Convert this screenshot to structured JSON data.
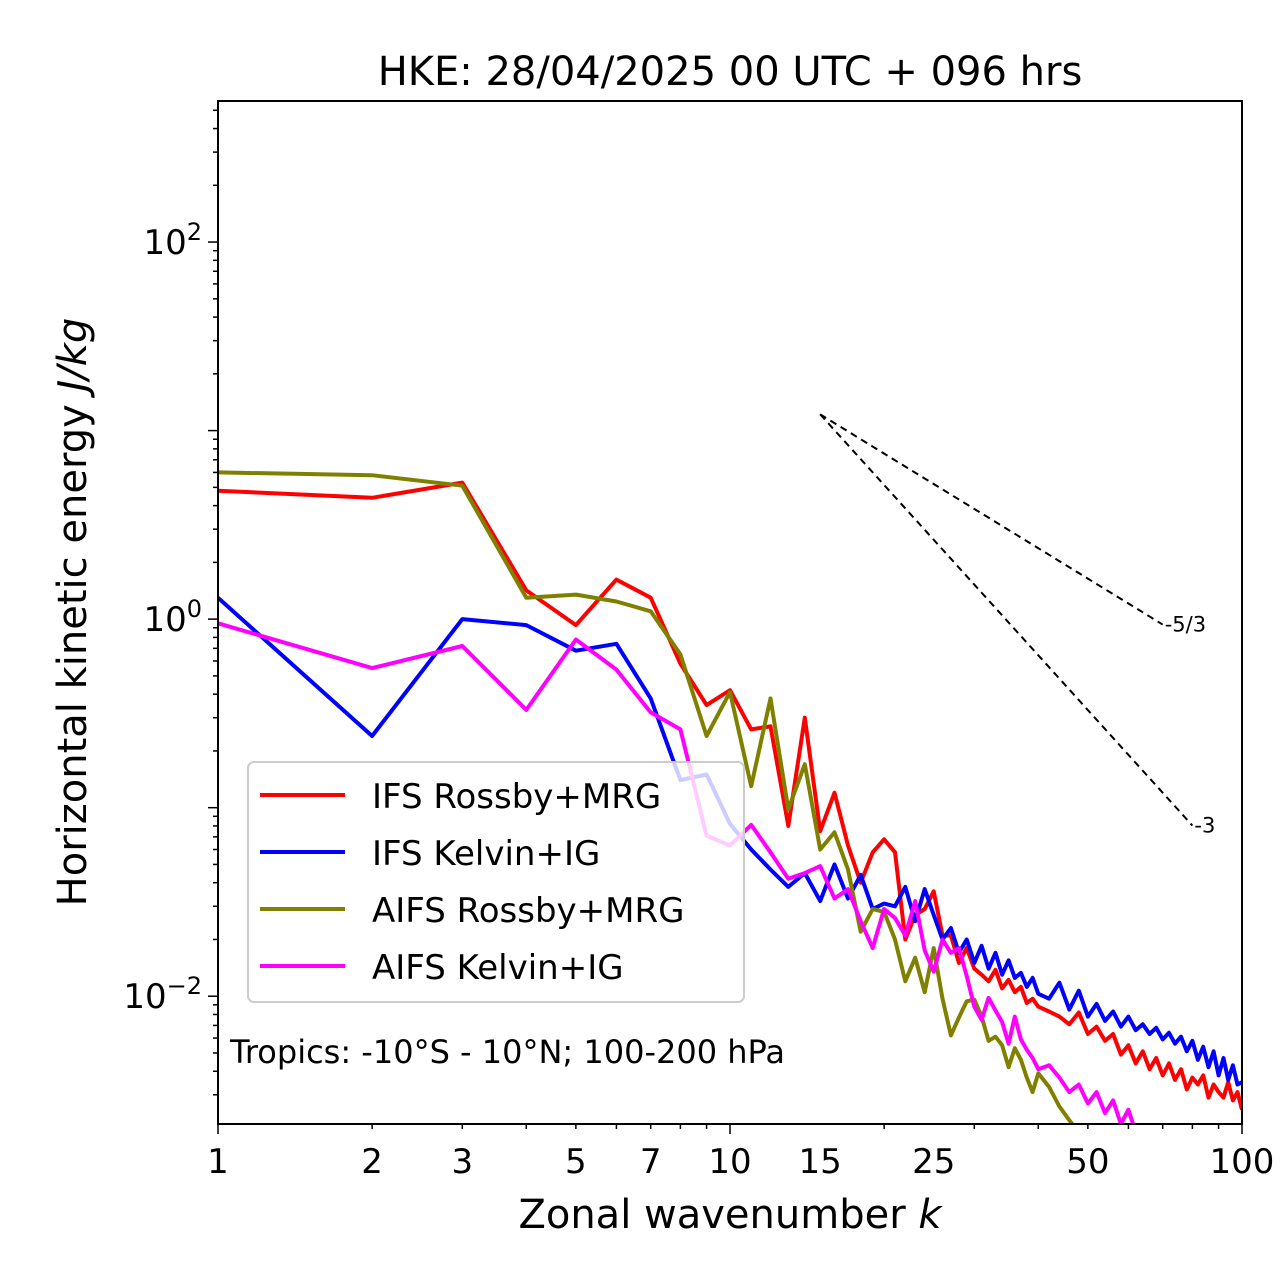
{
  "chart_data": {
    "type": "line",
    "title": "HKE: 28/04/2025 00 UTC + 096 hrs",
    "xlabel": "Zonal wavenumber",
    "xlabel_var": "k",
    "ylabel": "Horizontal kinetic energy",
    "ylabel_unit": "J/kg",
    "xscale": "log",
    "yscale": "log",
    "xlim": [
      1,
      100
    ],
    "ylim": [
      0.0021,
      560
    ],
    "x_ticks": [
      1,
      2,
      3,
      5,
      7,
      10,
      15,
      25,
      50,
      100
    ],
    "y_ticks": [
      {
        "value": 0.01,
        "base": "10",
        "exp": "−2"
      },
      {
        "value": 1,
        "base": "10",
        "exp": "0"
      },
      {
        "value": 100,
        "base": "10",
        "exp": "2"
      }
    ],
    "annotation": "Tropics: -10°S - 10°N; 100-200 hPa",
    "reference_lines": [
      {
        "label": "-5/3",
        "slope": -1.6667,
        "x": [
          15,
          70
        ],
        "y0": 12.2
      },
      {
        "label": "-3",
        "slope": -3,
        "x": [
          15,
          80
        ],
        "y0": 12.2
      }
    ],
    "legend_position": "lower-left",
    "grid": false,
    "series": [
      {
        "name": "IFS Rossby+MRG",
        "color": "#ff0000",
        "x": [
          1,
          2,
          3,
          4,
          5,
          6,
          7,
          8,
          9,
          10,
          11,
          12,
          13,
          14,
          15,
          16,
          17,
          18,
          19,
          20,
          21,
          22,
          23,
          24,
          25,
          26,
          27,
          28,
          29,
          30,
          31,
          32,
          33,
          34,
          35,
          36,
          37,
          38,
          39,
          40,
          42,
          44,
          46,
          48,
          50,
          52,
          54,
          56,
          58,
          60,
          62,
          64,
          66,
          68,
          70,
          72,
          74,
          76,
          78,
          80,
          82,
          84,
          86,
          88,
          90,
          92,
          94,
          96,
          98,
          100
        ],
        "y": [
          4.8,
          4.4,
          5.3,
          1.42,
          0.93,
          1.62,
          1.3,
          0.58,
          0.35,
          0.42,
          0.26,
          0.27,
          0.08,
          0.3,
          0.075,
          0.12,
          0.063,
          0.04,
          0.058,
          0.068,
          0.058,
          0.02,
          0.027,
          0.029,
          0.036,
          0.021,
          0.021,
          0.015,
          0.018,
          0.014,
          0.013,
          0.012,
          0.0138,
          0.011,
          0.0122,
          0.0105,
          0.0112,
          0.0092,
          0.0097,
          0.0088,
          0.0083,
          0.0078,
          0.0071,
          0.0082,
          0.0063,
          0.0069,
          0.0058,
          0.0063,
          0.0049,
          0.0055,
          0.0044,
          0.0051,
          0.0041,
          0.0047,
          0.0038,
          0.0044,
          0.0036,
          0.0041,
          0.0032,
          0.0037,
          0.0034,
          0.0038,
          0.0029,
          0.0034,
          0.0031,
          0.0029,
          0.0035,
          0.0028,
          0.0031,
          0.0025
        ]
      },
      {
        "name": "IFS Kelvin+IG",
        "color": "#0000ff",
        "x": [
          1,
          2,
          3,
          4,
          5,
          6,
          7,
          8,
          9,
          10,
          11,
          12,
          13,
          14,
          15,
          16,
          17,
          18,
          19,
          20,
          21,
          22,
          23,
          24,
          25,
          26,
          27,
          28,
          29,
          30,
          31,
          32,
          33,
          34,
          35,
          36,
          37,
          38,
          39,
          40,
          42,
          44,
          46,
          48,
          50,
          52,
          54,
          56,
          58,
          60,
          62,
          64,
          66,
          68,
          70,
          72,
          74,
          76,
          78,
          80,
          82,
          84,
          86,
          88,
          90,
          92,
          94,
          96,
          98,
          100
        ],
        "y": [
          1.3,
          0.24,
          1.0,
          0.93,
          0.68,
          0.74,
          0.38,
          0.14,
          0.15,
          0.082,
          0.06,
          0.047,
          0.038,
          0.045,
          0.032,
          0.05,
          0.033,
          0.044,
          0.029,
          0.031,
          0.03,
          0.038,
          0.025,
          0.037,
          0.027,
          0.02,
          0.023,
          0.017,
          0.02,
          0.015,
          0.0185,
          0.014,
          0.017,
          0.013,
          0.0155,
          0.0125,
          0.0133,
          0.0112,
          0.0125,
          0.0103,
          0.0097,
          0.0118,
          0.0085,
          0.0107,
          0.0078,
          0.0091,
          0.0074,
          0.0083,
          0.0069,
          0.0078,
          0.0066,
          0.0071,
          0.0063,
          0.0068,
          0.0059,
          0.0064,
          0.0056,
          0.0061,
          0.0051,
          0.0058,
          0.0046,
          0.0054,
          0.0042,
          0.0051,
          0.0038,
          0.0047,
          0.0036,
          0.0043,
          0.0034,
          0.0035
        ]
      },
      {
        "name": "AIFS Rossby+MRG",
        "color": "#808000",
        "x": [
          1,
          2,
          3,
          4,
          5,
          6,
          7,
          8,
          9,
          10,
          11,
          12,
          13,
          14,
          15,
          16,
          17,
          18,
          19,
          20,
          21,
          22,
          23,
          24,
          25,
          26,
          27,
          28,
          29,
          30,
          31,
          32,
          33,
          34,
          35,
          36,
          37,
          38,
          39,
          40,
          42,
          44,
          46,
          48
        ],
        "y": [
          6.0,
          5.8,
          5.1,
          1.3,
          1.35,
          1.24,
          1.1,
          0.65,
          0.24,
          0.41,
          0.13,
          0.38,
          0.098,
          0.17,
          0.06,
          0.074,
          0.047,
          0.022,
          0.029,
          0.028,
          0.02,
          0.012,
          0.016,
          0.0105,
          0.018,
          0.0097,
          0.0062,
          0.0077,
          0.0094,
          0.0096,
          0.0078,
          0.0058,
          0.0061,
          0.0055,
          0.0042,
          0.0053,
          0.0046,
          0.0037,
          0.0031,
          0.0039,
          0.0033,
          0.0026,
          0.0022,
          0.0019
        ]
      },
      {
        "name": "AIFS Kelvin+IG",
        "color": "#ff00ff",
        "x": [
          1,
          2,
          3,
          4,
          5,
          6,
          7,
          8,
          9,
          10,
          11,
          12,
          13,
          14,
          15,
          16,
          17,
          18,
          19,
          20,
          21,
          22,
          23,
          24,
          25,
          26,
          27,
          28,
          29,
          30,
          31,
          32,
          33,
          34,
          35,
          36,
          37,
          38,
          39,
          40,
          42,
          44,
          46,
          48,
          50,
          52,
          54,
          56,
          58,
          60,
          62
        ],
        "y": [
          0.95,
          0.55,
          0.72,
          0.33,
          0.78,
          0.54,
          0.32,
          0.26,
          0.071,
          0.063,
          0.081,
          0.058,
          0.042,
          0.045,
          0.049,
          0.033,
          0.037,
          0.025,
          0.018,
          0.029,
          0.026,
          0.021,
          0.032,
          0.0175,
          0.0135,
          0.02,
          0.017,
          0.018,
          0.0128,
          0.0088,
          0.0075,
          0.0098,
          0.0084,
          0.0073,
          0.0056,
          0.0078,
          0.0059,
          0.0052,
          0.0047,
          0.0041,
          0.0043,
          0.0037,
          0.0031,
          0.0034,
          0.0027,
          0.0031,
          0.0024,
          0.0028,
          0.0021,
          0.0025,
          0.0019
        ]
      }
    ]
  }
}
